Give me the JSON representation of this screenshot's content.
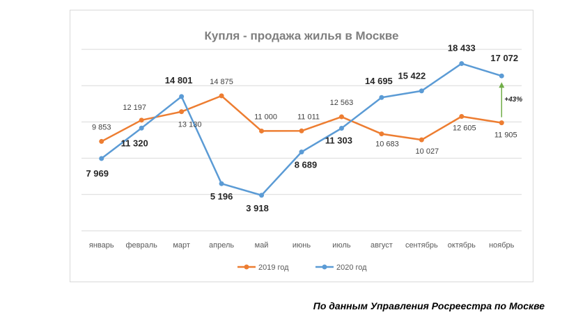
{
  "chart_data": {
    "type": "line",
    "title": "Купля - продажа жилья в Москве",
    "xlabel": "",
    "ylabel": "",
    "categories": [
      "январь",
      "февраль",
      "март",
      "апрель",
      "май",
      "июнь",
      "июль",
      "август",
      "сентябрь",
      "октябрь",
      "ноябрь"
    ],
    "series": [
      {
        "name": "2019 год",
        "color": "#ed7d31",
        "values": [
          9853,
          12197,
          13130,
          14875,
          11000,
          11011,
          12563,
          10683,
          10027,
          12605,
          11905
        ],
        "labels": [
          "9 853",
          "12 197",
          "13 130",
          "14 875",
          "11 000",
          "11 011",
          "12 563",
          "10 683",
          "10 027",
          "12 605",
          "11 905"
        ]
      },
      {
        "name": "2020 год",
        "color": "#5b9bd5",
        "values": [
          7969,
          11320,
          14801,
          5196,
          3918,
          8689,
          11303,
          14695,
          15422,
          18433,
          17072
        ],
        "labels": [
          "7 969",
          "11 320",
          "14 801",
          "5 196",
          "3 918",
          "8 689",
          "11 303",
          "14 695",
          "15 422",
          "18 433",
          "17 072"
        ]
      }
    ],
    "ylim": [
      0,
      20000
    ],
    "gridlines": [
      0,
      4000,
      8000,
      12000,
      16000,
      20000
    ],
    "grid": true,
    "legend": "bottom",
    "annotation": {
      "text": "+43%",
      "color": "#70ad47"
    }
  },
  "source": "По данным Управления Росреестра по Москве"
}
